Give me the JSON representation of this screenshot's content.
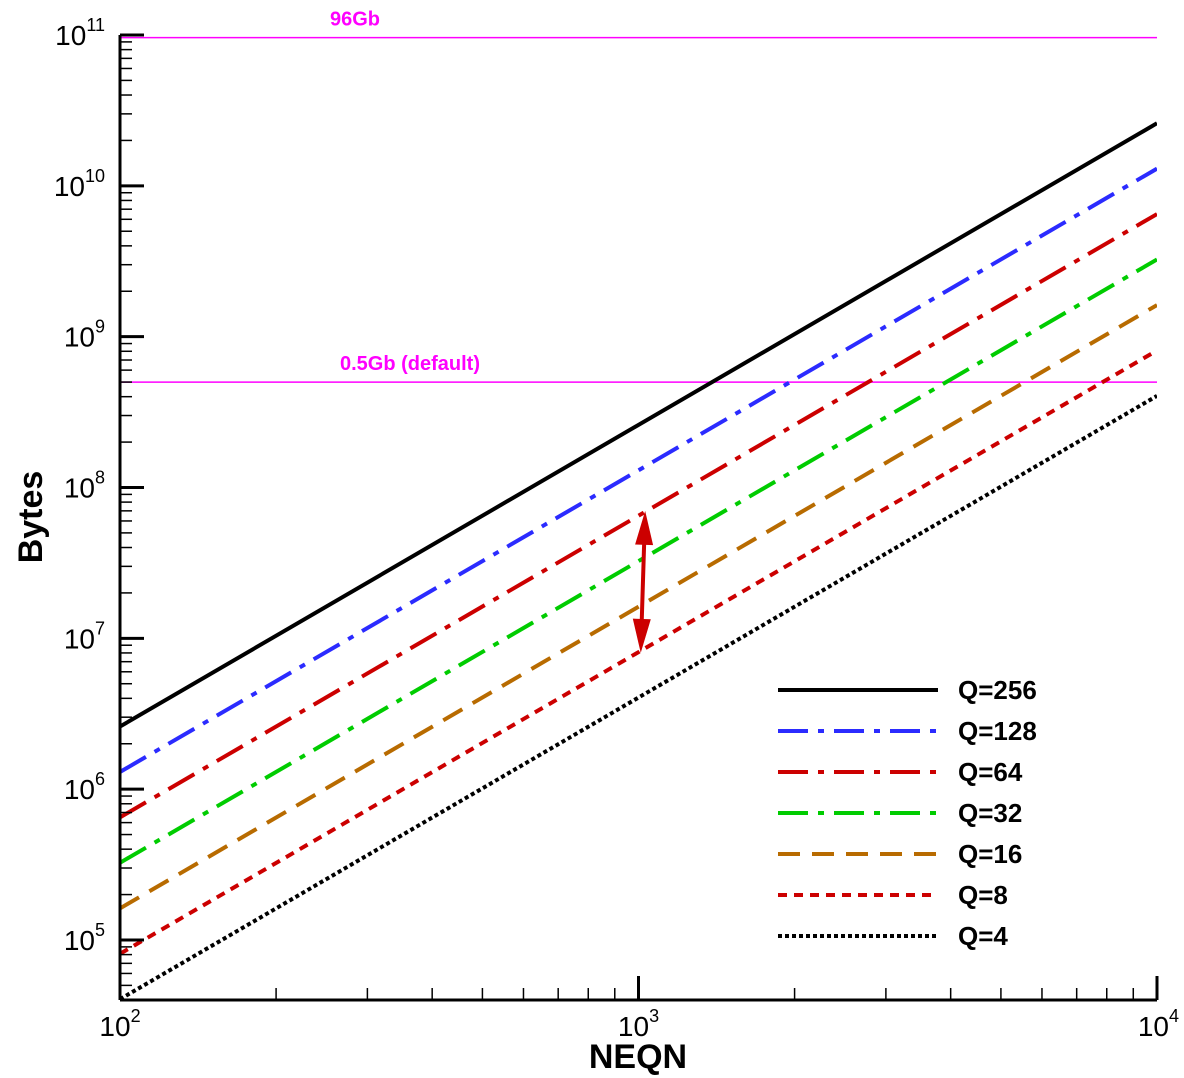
{
  "chart_data": {
    "type": "line",
    "xlabel": "NEQN",
    "ylabel": "Bytes",
    "xscale": "log",
    "yscale": "log",
    "xlim": [
      100,
      10000
    ],
    "ylim": [
      40000,
      100000000000
    ],
    "x_ticks": [
      {
        "base": "10",
        "exp": "2",
        "value": 100
      },
      {
        "base": "10",
        "exp": "3",
        "value": 1000
      },
      {
        "base": "10",
        "exp": "4",
        "value": 10000
      }
    ],
    "y_ticks": [
      {
        "base": "10",
        "exp": "5",
        "value": 100000
      },
      {
        "base": "10",
        "exp": "6",
        "value": 1000000
      },
      {
        "base": "10",
        "exp": "7",
        "value": 10000000
      },
      {
        "base": "10",
        "exp": "8",
        "value": 100000000
      },
      {
        "base": "10",
        "exp": "9",
        "value": 1000000000
      },
      {
        "base": "10",
        "exp": "10",
        "value": 10000000000
      },
      {
        "base": "10",
        "exp": "11",
        "value": 100000000000
      }
    ],
    "grid": false,
    "legend_position": "bottom-right",
    "series": [
      {
        "name": "Q=256",
        "color": "#000000",
        "dash": "solid",
        "x": [
          100,
          10000
        ],
        "y": [
          2600000,
          26000000000
        ]
      },
      {
        "name": "Q=128",
        "color": "#2b2bff",
        "dash": "dashdot",
        "x": [
          100,
          10000
        ],
        "y": [
          1300000,
          13000000000
        ]
      },
      {
        "name": "Q=64",
        "color": "#cc0000",
        "dash": "dashdot",
        "x": [
          100,
          10000
        ],
        "y": [
          650000,
          6500000000
        ]
      },
      {
        "name": "Q=32",
        "color": "#00cc00",
        "dash": "dashdot",
        "x": [
          100,
          10000
        ],
        "y": [
          325000,
          3250000000
        ]
      },
      {
        "name": "Q=16",
        "color": "#b86b00",
        "dash": "dashed",
        "x": [
          100,
          10000
        ],
        "y": [
          162000,
          1620000000
        ]
      },
      {
        "name": "Q=8",
        "color": "#cc0000",
        "dash": "shortdash",
        "x": [
          100,
          10000
        ],
        "y": [
          81000,
          810000000
        ]
      },
      {
        "name": "Q=4",
        "color": "#000000",
        "dash": "dotted",
        "x": [
          100,
          10000
        ],
        "y": [
          40500,
          405000000
        ]
      }
    ],
    "reference_lines": [
      {
        "label": "96Gb",
        "y": 96000000000,
        "color": "#ff00ff"
      },
      {
        "label": "0.5Gb (default)",
        "y": 500000000,
        "color": "#ff00ff"
      }
    ],
    "annotations": [
      {
        "type": "double-arrow",
        "color": "#cc0000",
        "x1": 1030,
        "y1": 70000000,
        "x2": 1010,
        "y2": 8000000
      }
    ]
  }
}
